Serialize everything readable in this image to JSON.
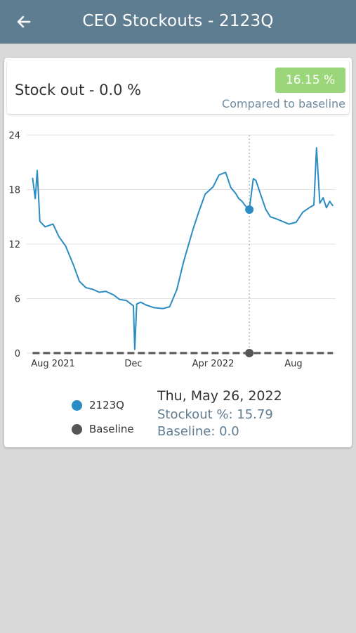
{
  "header": {
    "title": "CEO Stockouts - 2123Q",
    "back_icon": "arrow-left-icon"
  },
  "summary": {
    "stock_out_label": "Stock out - 0.0 %",
    "badge_value": "16.15 %",
    "compare_text": "Compared to baseline"
  },
  "colors": {
    "header_bg": "#5f7d91",
    "series": "#2b8cc4",
    "baseline": "#555555",
    "badge": "#9bd67a",
    "muted_text": "#6f8a9c"
  },
  "chart_data": {
    "type": "line",
    "y_ticks": [
      "0",
      "6",
      "12",
      "18",
      "24"
    ],
    "x_tick_labels": [
      "Aug 2021",
      "Dec",
      "Apr 2022",
      "Aug"
    ],
    "ylim": [
      0,
      24
    ],
    "x": [
      "2021-07-01",
      "2021-07-05",
      "2021-07-08",
      "2021-07-12",
      "2021-07-20",
      "2021-08-01",
      "2021-08-10",
      "2021-08-20",
      "2021-09-01",
      "2021-09-10",
      "2021-09-20",
      "2021-10-01",
      "2021-10-10",
      "2021-10-20",
      "2021-11-01",
      "2021-11-10",
      "2021-11-20",
      "2021-12-01",
      "2021-12-03",
      "2021-12-06",
      "2021-12-12",
      "2021-12-20",
      "2022-01-01",
      "2022-01-15",
      "2022-01-25",
      "2022-02-05",
      "2022-02-15",
      "2022-03-01",
      "2022-03-10",
      "2022-03-20",
      "2022-04-01",
      "2022-04-10",
      "2022-04-20",
      "2022-04-28",
      "2022-05-05",
      "2022-05-10",
      "2022-05-15",
      "2022-05-20",
      "2022-05-26",
      "2022-06-01",
      "2022-06-05",
      "2022-06-12",
      "2022-06-20",
      "2022-06-27",
      "2022-07-05",
      "2022-07-15",
      "2022-07-25",
      "2022-08-05",
      "2022-08-15",
      "2022-08-25",
      "2022-09-01",
      "2022-09-05",
      "2022-09-10",
      "2022-09-15",
      "2022-09-20",
      "2022-09-25",
      "2022-09-30"
    ],
    "series": [
      {
        "name": "2123Q",
        "values": [
          19.3,
          17.0,
          20.1,
          14.5,
          13.9,
          14.2,
          12.8,
          11.8,
          9.7,
          7.9,
          7.2,
          7.0,
          6.7,
          6.8,
          6.4,
          5.9,
          5.8,
          5.2,
          0.4,
          5.4,
          5.6,
          5.3,
          5.0,
          4.9,
          5.1,
          7.0,
          10.0,
          13.5,
          15.5,
          17.5,
          18.3,
          19.6,
          19.9,
          18.2,
          17.6,
          17.0,
          16.7,
          16.2,
          15.79,
          19.2,
          19.0,
          17.5,
          15.8,
          15.0,
          14.8,
          14.5,
          14.2,
          14.4,
          15.5,
          16.0,
          16.3,
          22.6,
          16.5,
          17.1,
          16.0,
          16.7,
          16.2
        ]
      },
      {
        "name": "Baseline",
        "values": [
          0,
          0,
          0,
          0,
          0,
          0,
          0,
          0,
          0,
          0,
          0,
          0,
          0,
          0,
          0,
          0,
          0,
          0,
          0,
          0,
          0,
          0,
          0,
          0,
          0,
          0,
          0,
          0,
          0,
          0,
          0,
          0,
          0,
          0,
          0,
          0,
          0,
          0,
          0,
          0,
          0,
          0,
          0,
          0,
          0,
          0,
          0,
          0,
          0,
          0,
          0,
          0,
          0,
          0,
          0,
          0,
          0
        ]
      }
    ],
    "selected_date": "2022-05-26"
  },
  "legend": [
    {
      "label": "2123Q"
    },
    {
      "label": "Baseline"
    }
  ],
  "tooltip": {
    "date": "Thu, May 26, 2022",
    "stockout": "Stockout %: 15.79",
    "baseline": "Baseline: 0.0"
  }
}
